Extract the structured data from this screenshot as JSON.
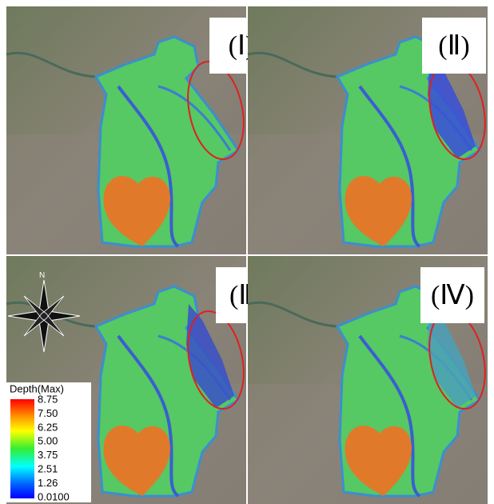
{
  "panels": [
    {
      "label": "(Ⅰ)"
    },
    {
      "label": "(Ⅱ)"
    },
    {
      "label": "(Ⅲ)"
    },
    {
      "label": "(Ⅳ)"
    }
  ],
  "compass": {
    "north": "N"
  },
  "legend": {
    "title": "Depth(Max)",
    "labels": [
      "8.75",
      "7.50",
      "6.25",
      "5.00",
      "3.75",
      "2.51",
      "1.26",
      "0.0100"
    ]
  }
}
